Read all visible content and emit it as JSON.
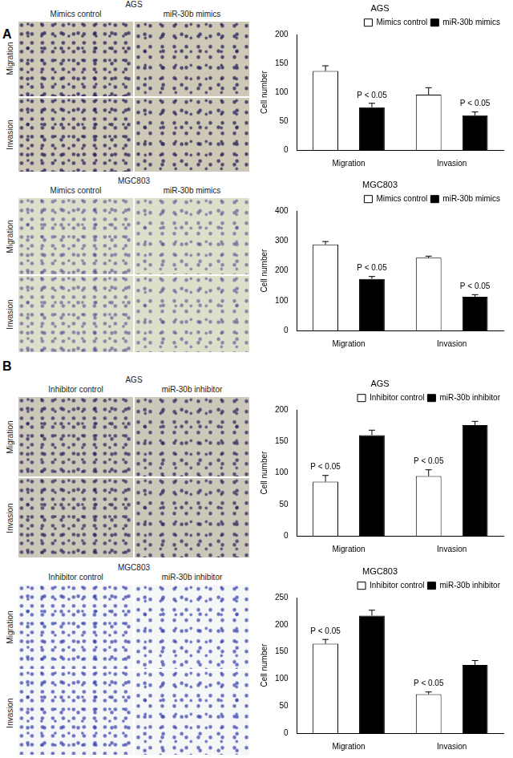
{
  "panel_labels": [
    "A",
    "B"
  ],
  "image_panels": [
    {
      "title": "AGS",
      "columns": [
        "Mimics control",
        "miR-30b mimics"
      ],
      "rows": [
        "Migration",
        "Invasion"
      ]
    },
    {
      "title": "MGC803",
      "columns": [
        "Mimics control",
        "miR-30b mimics"
      ],
      "rows": [
        "Migration",
        "Invasion"
      ]
    },
    {
      "title": "AGS",
      "columns": [
        "Inhibitor control",
        "miR-30b inhibitor"
      ],
      "rows": [
        "Migration",
        "Invasion"
      ]
    },
    {
      "title": "MGC803",
      "columns": [
        "Inhibitor control",
        "miR-30b inhibitor"
      ],
      "rows": [
        "Migration",
        "Invasion"
      ]
    }
  ],
  "chart_data": [
    {
      "type": "bar",
      "title": "AGS",
      "y_label": "Cell number",
      "categories": [
        "Migration",
        "Invasion"
      ],
      "series": [
        {
          "name": "Mimics control",
          "color": "#ffffff",
          "values": [
            137,
            96
          ],
          "errors": [
            9,
            12
          ]
        },
        {
          "name": "miR-30b mimics",
          "color": "#000000",
          "values": [
            74,
            60
          ],
          "errors": [
            7,
            6
          ]
        }
      ],
      "ylim": [
        0,
        200
      ],
      "yticks": [
        0,
        50,
        100,
        150,
        200
      ],
      "grid": false,
      "legend": "upper right",
      "annotations": [
        {
          "text": "P < 0.05",
          "series": 1,
          "category": 0
        },
        {
          "text": "P < 0.05",
          "series": 1,
          "category": 1
        }
      ]
    },
    {
      "type": "bar",
      "title": "MGC803",
      "y_label": "Cell number",
      "categories": [
        "Migration",
        "Invasion"
      ],
      "series": [
        {
          "name": "Mimics control",
          "color": "#ffffff",
          "values": [
            288,
            244
          ],
          "errors": [
            10,
            5
          ]
        },
        {
          "name": "miR-30b mimics",
          "color": "#000000",
          "values": [
            173,
            113
          ],
          "errors": [
            8,
            7
          ]
        }
      ],
      "ylim": [
        0,
        400
      ],
      "yticks": [
        0,
        100,
        200,
        300,
        400
      ],
      "grid": false,
      "legend": "upper right",
      "annotations": [
        {
          "text": "P < 0.05",
          "series": 1,
          "category": 0
        },
        {
          "text": "P < 0.05",
          "series": 1,
          "category": 1
        }
      ]
    },
    {
      "type": "bar",
      "title": "AGS",
      "y_label": "Cell number",
      "categories": [
        "Migration",
        "Invasion"
      ],
      "series": [
        {
          "name": "Inhibitor control",
          "color": "#ffffff",
          "values": [
            86,
            95
          ],
          "errors": [
            10,
            10
          ]
        },
        {
          "name": "miR-30b inhibitor",
          "color": "#000000",
          "values": [
            160,
            176
          ],
          "errors": [
            8,
            6
          ]
        }
      ],
      "ylim": [
        0,
        200
      ],
      "yticks": [
        0,
        50,
        100,
        150,
        200
      ],
      "grid": false,
      "legend": "upper right",
      "annotations": [
        {
          "text": "P < 0.05",
          "series": 0,
          "category": 0
        },
        {
          "text": "P < 0.05",
          "series": 0,
          "category": 1
        }
      ]
    },
    {
      "type": "bar",
      "title": "MGC803",
      "y_label": "Cell number",
      "categories": [
        "Migration",
        "Invasion"
      ],
      "series": [
        {
          "name": "Inhibitor control",
          "color": "#ffffff",
          "values": [
            165,
            72
          ],
          "errors": [
            8,
            4
          ]
        },
        {
          "name": "miR-30b inhibitor",
          "color": "#000000",
          "values": [
            217,
            126
          ],
          "errors": [
            10,
            8
          ]
        }
      ],
      "ylim": [
        0,
        250
      ],
      "yticks": [
        0,
        50,
        100,
        150,
        200,
        250
      ],
      "grid": false,
      "legend": "upper right",
      "annotations": [
        {
          "text": "P < 0.05",
          "series": 0,
          "category": 0
        },
        {
          "text": "P < 0.05",
          "series": 0,
          "category": 1
        }
      ]
    }
  ]
}
